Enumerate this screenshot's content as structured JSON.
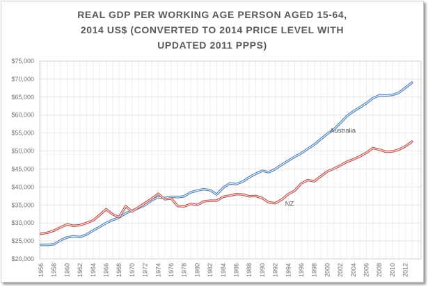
{
  "chart_data": {
    "type": "line",
    "title": "REAL GDP PER WORKING AGE PERSON AGED 15-64, 2014 US$ (CONVERTED TO 2014 PRICE LEVEL WITH UPDATED 2011 PPPS)",
    "title_lines": [
      "REAL GDP PER WORKING AGE PERSON AGED 15-64,",
      "2014 US$ (CONVERTED TO 2014 PRICE LEVEL WITH",
      "UPDATED 2011 PPPS)"
    ],
    "xlabel": "",
    "ylabel": "",
    "ylim": [
      20000,
      75000
    ],
    "y_step": 5000,
    "grid": "both",
    "legend_position": "inline-annotations",
    "x_start": 1956,
    "x_end": 2013,
    "x": [
      1956,
      1957,
      1958,
      1959,
      1960,
      1961,
      1962,
      1963,
      1964,
      1965,
      1966,
      1967,
      1968,
      1969,
      1970,
      1971,
      1972,
      1973,
      1974,
      1975,
      1976,
      1977,
      1978,
      1979,
      1980,
      1981,
      1982,
      1983,
      1984,
      1985,
      1986,
      1987,
      1988,
      1989,
      1990,
      1991,
      1992,
      1993,
      1994,
      1995,
      1996,
      1997,
      1998,
      1999,
      2000,
      2001,
      2002,
      2003,
      2004,
      2005,
      2006,
      2007,
      2008,
      2009,
      2010,
      2011,
      2012,
      2013
    ],
    "x_tick_labels": [
      "1956",
      "1958",
      "1960",
      "1962",
      "1964",
      "1966",
      "1968",
      "1970",
      "1972",
      "1974",
      "1976",
      "1978",
      "1980",
      "1982",
      "1984",
      "1986",
      "1988",
      "1990",
      "1992",
      "1994",
      "1996",
      "1998",
      "2000",
      "2002",
      "2004",
      "2006",
      "2008",
      "2010",
      "2012"
    ],
    "y_tick_labels": [
      "$75,000",
      "$70,000",
      "$65,000",
      "$60,000",
      "$55,000",
      "$50,000",
      "$45,000",
      "$40,000",
      "$35,000",
      "$30,000",
      "$25,000",
      "$20,000"
    ],
    "series": [
      {
        "name": "Australia",
        "label": "Australia",
        "color": "#4f81bd",
        "label_anchor": {
          "year": 2000.4,
          "value": 55100
        },
        "values": [
          23900,
          23900,
          24100,
          25200,
          26000,
          26300,
          26100,
          26800,
          27900,
          28900,
          30000,
          30800,
          31500,
          32700,
          33400,
          34200,
          35000,
          36300,
          37200,
          36900,
          37300,
          37200,
          37400,
          38500,
          39000,
          39400,
          39100,
          37900,
          39800,
          41000,
          40800,
          41500,
          42700,
          43700,
          44500,
          44100,
          45000,
          46200,
          47300,
          48400,
          49400,
          50600,
          51800,
          53300,
          54800,
          56000,
          57800,
          59700,
          61000,
          62100,
          63300,
          64700,
          65500,
          65400,
          65600,
          66200,
          67600,
          69000
        ]
      },
      {
        "name": "NZ",
        "label": "NZ",
        "color": "#c0504d",
        "label_anchor": {
          "year": 1993.5,
          "value": 34800
        },
        "values": [
          27000,
          27300,
          27900,
          28800,
          29600,
          29200,
          29400,
          30000,
          30700,
          32200,
          33800,
          32400,
          31600,
          34600,
          33200,
          34400,
          35600,
          36700,
          38100,
          36600,
          36800,
          34700,
          34600,
          35300,
          35000,
          36000,
          36200,
          36200,
          37300,
          37600,
          38000,
          37900,
          37400,
          37500,
          36900,
          35700,
          35500,
          36500,
          38000,
          39000,
          41000,
          41900,
          41600,
          43000,
          44300,
          45100,
          46000,
          47000,
          47700,
          48500,
          49500,
          50800,
          50400,
          49800,
          49900,
          50400,
          51300,
          52600
        ]
      }
    ],
    "style": {
      "gridline_vertical_color": "#eeeeee",
      "gridline_horizontal_color": "#e4e4e4",
      "plot_border_color": "#d2d2d2",
      "axis_text_color": "#6f6f6f",
      "title_color": "#595959",
      "line_inner_highlight": "#ffffff"
    }
  }
}
